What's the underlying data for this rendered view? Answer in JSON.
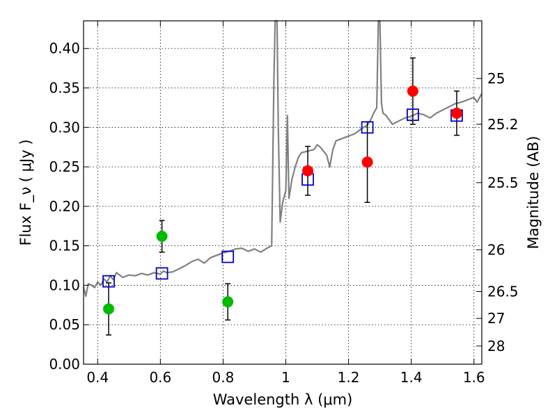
{
  "chart_data": {
    "type": "scatter",
    "xlabel": "Wavelength  λ (μm)",
    "ylabel_left": "Flux  F_ν  ( μJy )",
    "ylabel_right": "Magnitude (AB)",
    "xlim": [
      0.355,
      1.625
    ],
    "ylim": [
      0.0,
      0.435
    ],
    "grid": true,
    "x_ticks": [
      {
        "value": 0.4,
        "label": "0.4"
      },
      {
        "value": 0.6,
        "label": "0.6"
      },
      {
        "value": 0.8,
        "label": "0.8"
      },
      {
        "value": 1.0,
        "label": "1"
      },
      {
        "value": 1.2,
        "label": "1.2"
      },
      {
        "value": 1.4,
        "label": "1.4"
      },
      {
        "value": 1.6,
        "label": "1.6"
      }
    ],
    "y_ticks": [
      {
        "value": 0.0,
        "label": "0.00"
      },
      {
        "value": 0.05,
        "label": "0.05"
      },
      {
        "value": 0.1,
        "label": "0.10"
      },
      {
        "value": 0.15,
        "label": "0.15"
      },
      {
        "value": 0.2,
        "label": "0.20"
      },
      {
        "value": 0.25,
        "label": "0.25"
      },
      {
        "value": 0.3,
        "label": "0.30"
      },
      {
        "value": 0.35,
        "label": "0.35"
      },
      {
        "value": 0.4,
        "label": "0.40"
      }
    ],
    "right_ticks": [
      {
        "flux": 0.362,
        "label": "25"
      },
      {
        "flux": 0.304,
        "label": "25.2"
      },
      {
        "flux": 0.23,
        "label": "25.5"
      },
      {
        "flux": 0.145,
        "label": "26"
      },
      {
        "flux": 0.092,
        "label": "26.5"
      },
      {
        "flux": 0.058,
        "label": "27"
      },
      {
        "flux": 0.023,
        "label": "28"
      }
    ],
    "series": [
      {
        "marker": "line",
        "color": "#808080",
        "points": [
          [
            0.355,
            0.098
          ],
          [
            0.362,
            0.086
          ],
          [
            0.37,
            0.102
          ],
          [
            0.38,
            0.1
          ],
          [
            0.39,
            0.097
          ],
          [
            0.4,
            0.104
          ],
          [
            0.41,
            0.1
          ],
          [
            0.42,
            0.108
          ],
          [
            0.43,
            0.104
          ],
          [
            0.44,
            0.112
          ],
          [
            0.45,
            0.107
          ],
          [
            0.46,
            0.116
          ],
          [
            0.47,
            0.113
          ],
          [
            0.48,
            0.11
          ],
          [
            0.5,
            0.113
          ],
          [
            0.52,
            0.112
          ],
          [
            0.54,
            0.115
          ],
          [
            0.56,
            0.113
          ],
          [
            0.58,
            0.116
          ],
          [
            0.6,
            0.114
          ],
          [
            0.61,
            0.118
          ],
          [
            0.62,
            0.116
          ],
          [
            0.64,
            0.117
          ],
          [
            0.66,
            0.121
          ],
          [
            0.68,
            0.125
          ],
          [
            0.7,
            0.13
          ],
          [
            0.72,
            0.133
          ],
          [
            0.74,
            0.128
          ],
          [
            0.76,
            0.135
          ],
          [
            0.78,
            0.138
          ],
          [
            0.8,
            0.141
          ],
          [
            0.82,
            0.143
          ],
          [
            0.84,
            0.146
          ],
          [
            0.86,
            0.147
          ],
          [
            0.88,
            0.143
          ],
          [
            0.9,
            0.146
          ],
          [
            0.92,
            0.142
          ],
          [
            0.94,
            0.147
          ],
          [
            0.955,
            0.15
          ],
          [
            0.962,
            0.36
          ],
          [
            0.966,
            0.435
          ],
          [
            0.972,
            0.435
          ],
          [
            0.976,
            0.3
          ],
          [
            0.982,
            0.18
          ],
          [
            0.99,
            0.205
          ],
          [
            1.0,
            0.22
          ],
          [
            1.005,
            0.315
          ],
          [
            1.01,
            0.21
          ],
          [
            1.02,
            0.235
          ],
          [
            1.03,
            0.25
          ],
          [
            1.04,
            0.262
          ],
          [
            1.05,
            0.268
          ],
          [
            1.07,
            0.27
          ],
          [
            1.09,
            0.272
          ],
          [
            1.1,
            0.278
          ],
          [
            1.11,
            0.275
          ],
          [
            1.12,
            0.27
          ],
          [
            1.13,
            0.265
          ],
          [
            1.14,
            0.25
          ],
          [
            1.15,
            0.272
          ],
          [
            1.16,
            0.283
          ],
          [
            1.18,
            0.286
          ],
          [
            1.2,
            0.289
          ],
          [
            1.22,
            0.292
          ],
          [
            1.24,
            0.298
          ],
          [
            1.26,
            0.303
          ],
          [
            1.27,
            0.309
          ],
          [
            1.28,
            0.318
          ],
          [
            1.29,
            0.325
          ],
          [
            1.295,
            0.435
          ],
          [
            1.3,
            0.435
          ],
          [
            1.305,
            0.33
          ],
          [
            1.31,
            0.318
          ],
          [
            1.32,
            0.315
          ],
          [
            1.34,
            0.304
          ],
          [
            1.36,
            0.308
          ],
          [
            1.38,
            0.312
          ],
          [
            1.4,
            0.314
          ],
          [
            1.42,
            0.318
          ],
          [
            1.44,
            0.316
          ],
          [
            1.46,
            0.312
          ],
          [
            1.48,
            0.318
          ],
          [
            1.5,
            0.322
          ],
          [
            1.52,
            0.326
          ],
          [
            1.54,
            0.33
          ],
          [
            1.56,
            0.332
          ],
          [
            1.58,
            0.335
          ],
          [
            1.6,
            0.338
          ],
          [
            1.61,
            0.332
          ],
          [
            1.625,
            0.343
          ]
        ]
      },
      {
        "marker": "open-square",
        "color": "#0000cc",
        "points": [
          [
            0.435,
            0.105
          ],
          [
            0.605,
            0.115
          ],
          [
            0.815,
            0.136
          ],
          [
            1.07,
            0.234
          ],
          [
            1.26,
            0.3
          ],
          [
            1.405,
            0.316
          ],
          [
            1.545,
            0.315
          ]
        ]
      },
      {
        "marker": "filled-circle",
        "color": "#00bb00",
        "points": [
          {
            "x": 0.435,
            "y": 0.07,
            "err": 0.033
          },
          {
            "x": 0.605,
            "y": 0.162,
            "err": 0.02
          },
          {
            "x": 0.815,
            "y": 0.079,
            "err": 0.023
          }
        ]
      },
      {
        "marker": "filled-circle",
        "color": "#ff0000",
        "points": [
          {
            "x": 1.07,
            "y": 0.245,
            "err": 0.031
          },
          {
            "x": 1.26,
            "y": 0.256,
            "err": 0.051
          },
          {
            "x": 1.405,
            "y": 0.346,
            "err": 0.042
          },
          {
            "x": 1.545,
            "y": 0.318,
            "err": 0.028
          }
        ]
      }
    ]
  }
}
